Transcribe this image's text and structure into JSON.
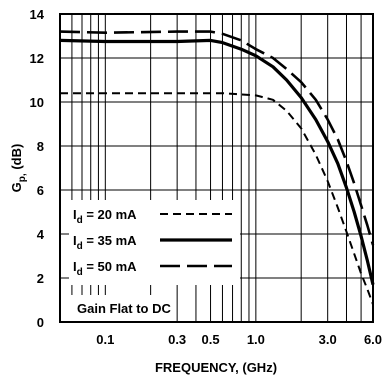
{
  "chart_data": {
    "type": "line",
    "xlabel": "FREQUENCY, (GHz)",
    "ylabel_main": "G",
    "ylabel_sub": "p,",
    "ylabel_unit": " (dB)",
    "x_scale": "log",
    "xlim": [
      0.05,
      6.0
    ],
    "ylim": [
      0,
      14
    ],
    "x_tick_labels": [
      {
        "value": 0.1,
        "label": "0.1"
      },
      {
        "value": 0.3,
        "label": "0.3"
      },
      {
        "value": 0.5,
        "label": "0.5"
      },
      {
        "value": 1.0,
        "label": "1.0"
      },
      {
        "value": 3.0,
        "label": "3.0"
      },
      {
        "value": 6.0,
        "label": "6.0"
      }
    ],
    "x_grid": [
      0.06,
      0.07,
      0.08,
      0.09,
      0.1,
      0.2,
      0.3,
      0.4,
      0.5,
      0.6,
      0.7,
      0.8,
      0.9,
      1.0,
      2.0,
      3.0,
      4.0,
      5.0
    ],
    "y_ticks": [
      0,
      2,
      4,
      6,
      8,
      10,
      12,
      14
    ],
    "grid": true,
    "annotation": "Gain Flat to DC",
    "series": [
      {
        "name_main": "I",
        "name_sub": "d",
        "name_rest": " = 20 mA",
        "style": "dashed",
        "x": [
          0.05,
          0.1,
          0.3,
          0.6,
          1.0,
          1.3,
          1.6,
          2.0,
          2.5,
          3.0,
          3.5,
          4.0,
          4.5,
          5.0,
          5.5,
          6.0
        ],
        "y": [
          10.4,
          10.4,
          10.4,
          10.4,
          10.3,
          10.1,
          9.6,
          8.8,
          7.6,
          6.4,
          5.2,
          4.1,
          3.1,
          2.2,
          1.5,
          0.8
        ]
      },
      {
        "name_main": "I",
        "name_sub": "d",
        "name_rest": " = 35 mA",
        "style": "solid",
        "x": [
          0.05,
          0.1,
          0.3,
          0.5,
          0.6,
          0.8,
          1.0,
          1.3,
          1.6,
          2.0,
          2.5,
          3.0,
          3.5,
          4.0,
          4.5,
          5.0,
          5.5,
          6.0
        ],
        "y": [
          12.8,
          12.75,
          12.75,
          12.8,
          12.7,
          12.4,
          12.1,
          11.6,
          11.0,
          10.2,
          9.2,
          8.2,
          7.2,
          6.1,
          5.0,
          3.9,
          2.8,
          1.7
        ]
      },
      {
        "name_main": "I",
        "name_sub": "d",
        "name_rest": " = 50 mA",
        "style": "long-dash",
        "x": [
          0.05,
          0.1,
          0.3,
          0.5,
          0.6,
          0.8,
          1.0,
          1.3,
          1.6,
          2.0,
          2.5,
          3.0,
          3.5,
          4.0,
          4.5,
          5.0,
          5.5,
          6.0
        ],
        "y": [
          13.2,
          13.15,
          13.2,
          13.2,
          13.1,
          12.8,
          12.4,
          12.0,
          11.5,
          10.9,
          10.1,
          9.2,
          8.3,
          7.3,
          6.3,
          5.3,
          4.4,
          3.5
        ]
      }
    ]
  }
}
